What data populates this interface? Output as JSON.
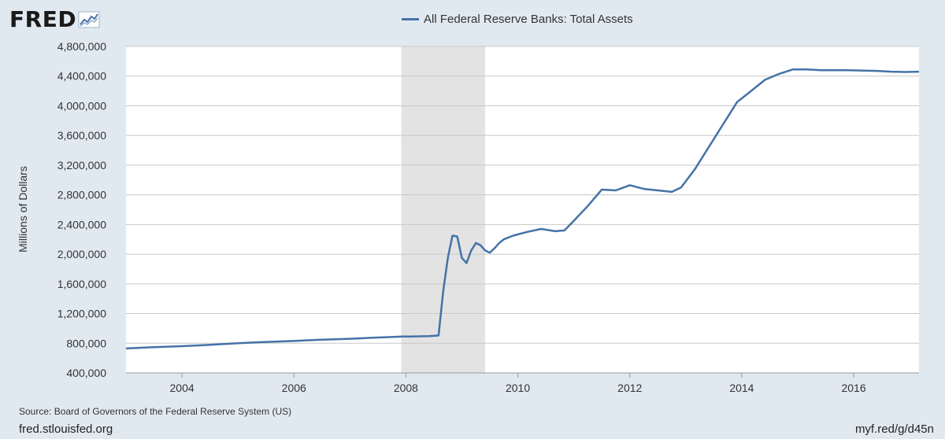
{
  "logo": {
    "text": "FRED",
    "icon": "fred-chart-icon"
  },
  "colors": {
    "line": "#4572a7",
    "background": "#e1e9f0",
    "plot": "#ffffff",
    "recession": "#e3e3e3",
    "grid": "#c8c8c8"
  },
  "chart_data": {
    "type": "line",
    "title": "",
    "xlabel": "",
    "ylabel": "Millions of Dollars",
    "ylim": [
      400000,
      4800000
    ],
    "xlim": [
      "2003-01",
      "2017-03"
    ],
    "yticks": [
      400000,
      800000,
      1200000,
      1600000,
      2000000,
      2400000,
      2800000,
      3200000,
      3600000,
      4000000,
      4400000,
      4800000
    ],
    "ytick_labels": [
      "400,000",
      "800,000",
      "1,200,000",
      "1,600,000",
      "2,000,000",
      "2,400,000",
      "2,800,000",
      "3,200,000",
      "3,600,000",
      "4,000,000",
      "4,400,000",
      "4,800,000"
    ],
    "xticks": [
      2004,
      2006,
      2008,
      2010,
      2012,
      2014,
      2016
    ],
    "xtick_labels": [
      "2004",
      "2006",
      "2008",
      "2010",
      "2012",
      "2014",
      "2016"
    ],
    "grid": "horizontal",
    "legend": "top-center",
    "recession": {
      "start": "2007-12",
      "end": "2009-06"
    },
    "series": [
      {
        "name": "All Federal Reserve Banks: Total Assets",
        "x": [
          "2003-01",
          "2003-06",
          "2004-01",
          "2004-06",
          "2005-01",
          "2005-06",
          "2006-01",
          "2006-06",
          "2007-01",
          "2007-06",
          "2007-12",
          "2008-02",
          "2008-06",
          "2008-08",
          "2008-09",
          "2008-10",
          "2008-11",
          "2008-12",
          "2009-01",
          "2009-02",
          "2009-03",
          "2009-04",
          "2009-05",
          "2009-06",
          "2009-07",
          "2009-08",
          "2009-09",
          "2009-10",
          "2009-12",
          "2010-03",
          "2010-06",
          "2010-09",
          "2010-11",
          "2011-01",
          "2011-04",
          "2011-07",
          "2011-10",
          "2012-01",
          "2012-04",
          "2012-07",
          "2012-10",
          "2012-12",
          "2013-03",
          "2013-06",
          "2013-09",
          "2013-12",
          "2014-03",
          "2014-06",
          "2014-09",
          "2014-12",
          "2015-03",
          "2015-06",
          "2015-09",
          "2015-12",
          "2016-03",
          "2016-06",
          "2016-09",
          "2016-12",
          "2017-03"
        ],
        "values": [
          730000,
          745000,
          760000,
          775000,
          800000,
          815000,
          830000,
          845000,
          860000,
          875000,
          890000,
          890000,
          895000,
          905000,
          1500000,
          1950000,
          2250000,
          2240000,
          1950000,
          1880000,
          2050000,
          2150000,
          2120000,
          2050000,
          2020000,
          2080000,
          2150000,
          2200000,
          2250000,
          2300000,
          2340000,
          2310000,
          2320000,
          2450000,
          2650000,
          2870000,
          2860000,
          2930000,
          2880000,
          2860000,
          2840000,
          2900000,
          3150000,
          3450000,
          3750000,
          4050000,
          4200000,
          4350000,
          4430000,
          4490000,
          4490000,
          4480000,
          4480000,
          4480000,
          4475000,
          4470000,
          4460000,
          4455000,
          4460000
        ]
      }
    ]
  },
  "source": "Source: Board of Governors of the Federal Reserve System (US)",
  "site": "fred.stlouisfed.org",
  "short_url": "myf.red/g/d45n"
}
